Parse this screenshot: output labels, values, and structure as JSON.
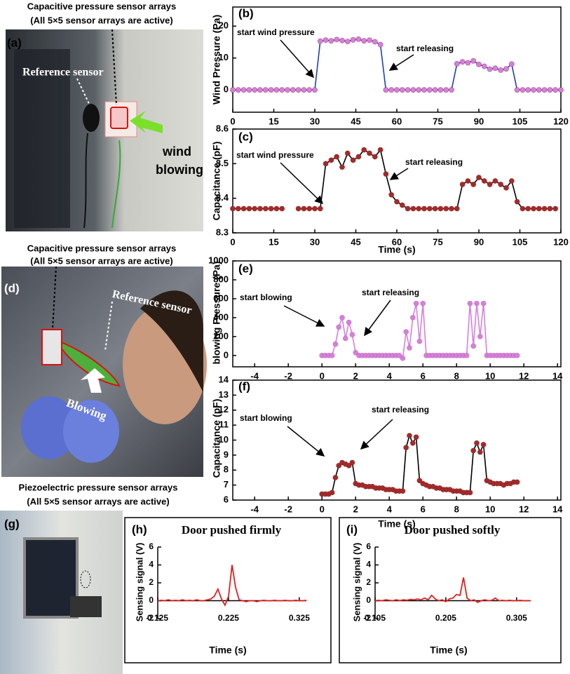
{
  "photo_a": {
    "caption": [
      "Capacitive pressure sensor arrays",
      "(All 5×5 sensor arrays are active)"
    ],
    "panel_label": "(a)",
    "labels": [
      "Reference sensor",
      "wind",
      "blowing"
    ]
  },
  "photo_d": {
    "caption": [
      "Capacitive pressure sensor arrays",
      "(All 5×5 sensor arrays are active)"
    ],
    "panel_label": "(d)",
    "labels": [
      "Reference sensor",
      "Blowing"
    ]
  },
  "photo_g": {
    "caption": [
      "Piezoelectric pressure sensor arrays",
      "(All 5×5 sensor arrays are active)"
    ],
    "panel_label": "(g)"
  },
  "chart_data": [
    {
      "type": "line",
      "panel_label": "(b)",
      "ylabel": "Wind Pressure (Pa)",
      "annotations": [
        "start wind pressure",
        "start releasing"
      ],
      "line_color": "#1f3fbf",
      "marker_color": "#d67fe0",
      "x": [
        0,
        2,
        4,
        6,
        8,
        10,
        12,
        14,
        16,
        18,
        20,
        22,
        24,
        26,
        28,
        30,
        32,
        34,
        36,
        38,
        40,
        42,
        44,
        46,
        48,
        50,
        52,
        54,
        56,
        58,
        60,
        62,
        64,
        66,
        68,
        70,
        72,
        74,
        76,
        78,
        80,
        82,
        84,
        86,
        88,
        90,
        92,
        94,
        96,
        98,
        100,
        102,
        104,
        106,
        108,
        110,
        112,
        114,
        116,
        118,
        120
      ],
      "values": [
        0,
        0,
        0,
        0,
        0,
        0,
        0,
        0,
        0,
        0,
        0,
        0,
        0,
        0,
        0,
        0,
        15.3,
        15.6,
        15.4,
        15.8,
        15.5,
        15.2,
        15.7,
        15.9,
        15.4,
        15.6,
        15.1,
        14.2,
        0,
        0,
        0,
        0,
        0,
        0,
        0,
        0,
        0,
        0,
        0,
        0,
        0,
        8.2,
        8.8,
        8.5,
        9.1,
        8.0,
        7.4,
        6.5,
        6.8,
        6.2,
        6.6,
        8.1,
        0,
        0,
        0,
        0,
        0,
        0,
        0,
        0,
        0
      ],
      "xlim": [
        0,
        120
      ],
      "ylim": [
        -7,
        26
      ],
      "xticks": [
        0,
        15,
        30,
        45,
        60,
        75,
        90,
        105,
        120
      ],
      "yticks": [
        0,
        10,
        20
      ]
    },
    {
      "type": "line",
      "panel_label": "(c)",
      "ylabel": "Capacitance (pF)",
      "xlabel": "Time (s)",
      "annotations": [
        "start wind pressure",
        "start releasing"
      ],
      "line_color": "#000000",
      "marker_color": "#a52a2a",
      "x": [
        0,
        2,
        4,
        6,
        8,
        10,
        12,
        14,
        16,
        18,
        20,
        22,
        24,
        26,
        28,
        30,
        32,
        34,
        36,
        38,
        40,
        42,
        44,
        46,
        48,
        50,
        52,
        54,
        56,
        58,
        60,
        62,
        64,
        66,
        68,
        70,
        72,
        74,
        76,
        78,
        80,
        82,
        84,
        86,
        88,
        90,
        92,
        94,
        96,
        98,
        100,
        102,
        104,
        106,
        108,
        110,
        112,
        114,
        116,
        118
      ],
      "values": [
        8.37,
        8.37,
        8.37,
        8.37,
        8.37,
        8.37,
        8.37,
        8.37,
        8.37,
        8.37,
        null,
        null,
        8.37,
        8.37,
        8.37,
        8.37,
        8.37,
        8.5,
        8.51,
        8.52,
        8.49,
        8.53,
        8.51,
        8.52,
        8.54,
        8.53,
        8.52,
        8.54,
        8.47,
        8.41,
        8.39,
        8.38,
        8.37,
        8.37,
        8.37,
        8.37,
        8.37,
        8.37,
        8.37,
        8.37,
        8.37,
        8.37,
        8.44,
        8.45,
        8.44,
        8.46,
        8.45,
        8.44,
        8.45,
        8.44,
        8.43,
        8.45,
        8.39,
        8.37,
        8.37,
        8.37,
        8.37,
        8.37,
        8.37,
        8.37
      ],
      "xlim": [
        0,
        120
      ],
      "ylim": [
        8.3,
        8.6
      ],
      "xticks": [
        0,
        15,
        30,
        45,
        60,
        75,
        90,
        105,
        120
      ],
      "yticks": [
        8.3,
        8.4,
        8.5,
        8.6
      ]
    },
    {
      "type": "line",
      "panel_label": "(e)",
      "ylabel": "blowing Pressure (Pa)",
      "annotations": [
        "start blowing",
        "start releasing"
      ],
      "line_color": "#d67fe0",
      "marker_color": "#d67fe0",
      "x": [
        0,
        0.2,
        0.4,
        0.6,
        0.8,
        1,
        1.2,
        1.4,
        1.6,
        1.8,
        2,
        2.2,
        2.4,
        2.6,
        2.8,
        3,
        3.2,
        3.4,
        3.6,
        3.8,
        4,
        4.2,
        4.4,
        4.6,
        4.8,
        5,
        5.2,
        5.4,
        5.6,
        5.8,
        6,
        6.2,
        6.4,
        6.6,
        6.8,
        7,
        7.2,
        7.4,
        7.6,
        7.8,
        8,
        8.2,
        8.4,
        8.6,
        8.8,
        9,
        9.2,
        9.4,
        9.6,
        9.8,
        10,
        10.2,
        10.4,
        10.6,
        10.8,
        11,
        11.2,
        11.4,
        11.6
      ],
      "values": [
        0,
        0,
        0,
        0,
        120,
        300,
        400,
        180,
        350,
        220,
        30,
        0,
        0,
        0,
        0,
        0,
        0,
        0,
        0,
        0,
        0,
        0,
        0,
        0,
        -30,
        250,
        80,
        400,
        550,
        150,
        550,
        0,
        0,
        0,
        0,
        0,
        0,
        0,
        0,
        0,
        0,
        0,
        0,
        0,
        550,
        100,
        550,
        200,
        550,
        0,
        0,
        0,
        0,
        0,
        0,
        0,
        0,
        0,
        0
      ],
      "xlim": [
        -5.3,
        14.2
      ],
      "ylim": [
        -120,
        1000
      ],
      "xticks": [
        -4,
        -2,
        0,
        2,
        4,
        6,
        8,
        10,
        12,
        14
      ],
      "yticks": [
        0,
        200,
        400,
        600,
        800,
        1000
      ]
    },
    {
      "type": "line",
      "panel_label": "(f)",
      "ylabel": "Capacitance (pF)",
      "xlabel": "Time (s)",
      "annotations": [
        "start blowing",
        "start releasing"
      ],
      "line_color": "#000000",
      "marker_color": "#a52a2a",
      "x": [
        0,
        0.2,
        0.4,
        0.6,
        0.8,
        1,
        1.2,
        1.4,
        1.6,
        1.8,
        2,
        2.2,
        2.4,
        2.6,
        2.8,
        3,
        3.2,
        3.4,
        3.6,
        3.8,
        4,
        4.2,
        4.4,
        4.6,
        4.8,
        5,
        5.2,
        5.4,
        5.6,
        5.8,
        6,
        6.2,
        6.4,
        6.6,
        6.8,
        7,
        7.2,
        7.4,
        7.6,
        7.8,
        8,
        8.2,
        8.4,
        8.6,
        8.8,
        9,
        9.2,
        9.4,
        9.6,
        9.8,
        10,
        10.2,
        10.4,
        10.6,
        10.8,
        11,
        11.2,
        11.4,
        11.6
      ],
      "values": [
        6.4,
        6.4,
        6.4,
        6.5,
        7.5,
        8.3,
        8.5,
        8.4,
        8.3,
        8.5,
        7.1,
        7.0,
        7.0,
        6.9,
        6.9,
        6.9,
        6.8,
        6.8,
        6.8,
        6.7,
        6.7,
        6.7,
        6.6,
        6.6,
        6.6,
        9.5,
        10.3,
        9.8,
        10.2,
        7.3,
        7.1,
        7.0,
        6.9,
        6.9,
        6.8,
        6.8,
        6.7,
        6.7,
        6.7,
        6.6,
        6.6,
        6.6,
        6.5,
        6.5,
        6.5,
        9.3,
        9.8,
        9.2,
        9.7,
        7.3,
        7.2,
        7.1,
        7.1,
        7.1,
        7.0,
        7.1,
        7.1,
        7.2,
        7.2
      ],
      "xlim": [
        -5.3,
        14.2
      ],
      "ylim": [
        6,
        14
      ],
      "xticks": [
        -4,
        -2,
        0,
        2,
        4,
        6,
        8,
        10,
        12,
        14
      ],
      "yticks": [
        6,
        7,
        8,
        9,
        10,
        11,
        12,
        13,
        14
      ]
    },
    {
      "type": "line",
      "panel_label": "(h)",
      "title": "Door pushed firmly",
      "ylabel": "Sensing signal (V)",
      "xlabel": "Time (s)",
      "line_color": "#e02020",
      "x": [
        0.125,
        0.13,
        0.135,
        0.14,
        0.145,
        0.15,
        0.155,
        0.16,
        0.165,
        0.17,
        0.175,
        0.18,
        0.185,
        0.19,
        0.195,
        0.2,
        0.205,
        0.21,
        0.215,
        0.22,
        0.225,
        0.23,
        0.235,
        0.24,
        0.245,
        0.25,
        0.255,
        0.26,
        0.265,
        0.27,
        0.275,
        0.28,
        0.285,
        0.29,
        0.295,
        0.3,
        0.305,
        0.31,
        0.315,
        0.32,
        0.325,
        0.33,
        0.335
      ],
      "values": [
        0,
        0.05,
        0,
        0.1,
        0,
        0.05,
        0,
        0.1,
        0,
        0.05,
        0,
        0.1,
        0,
        0,
        0.1,
        0.2,
        0.5,
        1.3,
        0.2,
        -0.5,
        0.5,
        4,
        1.5,
        0.1,
        0,
        -0.1,
        0,
        0,
        -0.1,
        0,
        0.05,
        0,
        0,
        0.05,
        0,
        0,
        0.05,
        0,
        0,
        0.05,
        0,
        0,
        0.05
      ],
      "xlim": [
        0.125,
        0.335
      ],
      "ylim": [
        -2,
        6
      ],
      "xticks": [
        0.125,
        0.225,
        0.325
      ],
      "yticks": [
        -2,
        0,
        2,
        4,
        6
      ]
    },
    {
      "type": "line",
      "panel_label": "(i)",
      "title": "Door pushed softly",
      "ylabel": "Sensing signal (V)",
      "xlabel": "Time (s)",
      "line_color": "#e02020",
      "x": [
        0.105,
        0.11,
        0.115,
        0.12,
        0.125,
        0.13,
        0.135,
        0.14,
        0.145,
        0.15,
        0.155,
        0.16,
        0.165,
        0.17,
        0.175,
        0.18,
        0.185,
        0.19,
        0.195,
        0.2,
        0.205,
        0.21,
        0.215,
        0.22,
        0.225,
        0.23,
        0.235,
        0.24,
        0.245,
        0.25,
        0.255,
        0.26,
        0.265,
        0.27,
        0.275,
        0.28,
        0.285,
        0.29,
        0.295,
        0.3,
        0.305,
        0.31,
        0.315,
        0.32,
        0.325
      ],
      "values": [
        0,
        0.05,
        0,
        0.1,
        0.05,
        0,
        0.1,
        0,
        0.1,
        0.05,
        0.15,
        0.1,
        0.2,
        0.1,
        0.3,
        0.1,
        0.6,
        0.2,
        0,
        0.1,
        -0.1,
        0.2,
        0.3,
        0.7,
        0.6,
        2.6,
        0.3,
        0,
        0.1,
        -0.2,
        0,
        0.1,
        0,
        0.05,
        0.3,
        0,
        0.05,
        0,
        0.05,
        0,
        0,
        0.05,
        0,
        0,
        0
      ],
      "xlim": [
        0.105,
        0.325
      ],
      "ylim": [
        -2,
        6
      ],
      "xticks": [
        0.105,
        0.205,
        0.305
      ],
      "yticks": [
        -2,
        0,
        2,
        4,
        6
      ]
    }
  ]
}
